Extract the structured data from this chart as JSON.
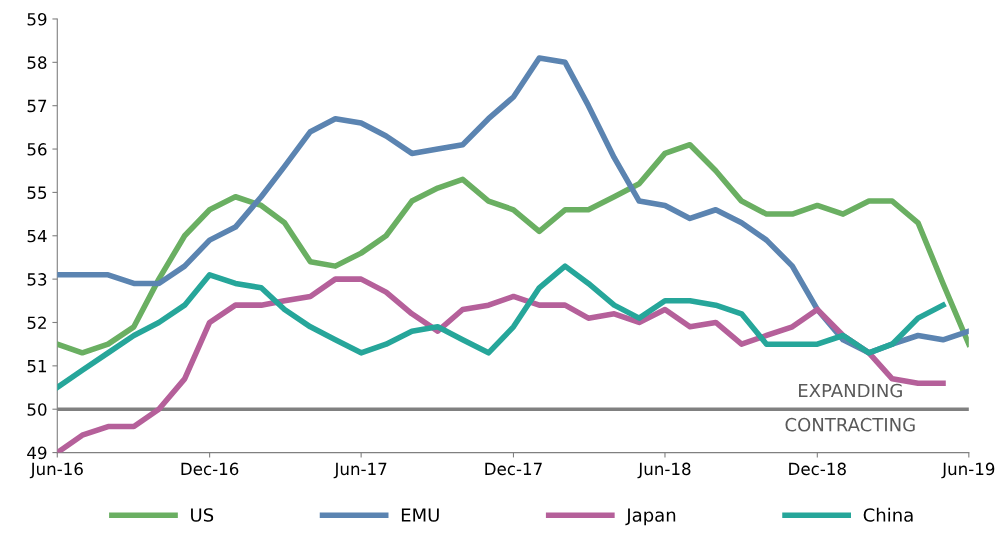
{
  "chart_data": {
    "type": "line",
    "x": [
      "2016-06",
      "2016-07",
      "2016-08",
      "2016-09",
      "2016-10",
      "2016-11",
      "2016-12",
      "2017-01",
      "2017-02",
      "2017-03",
      "2017-04",
      "2017-05",
      "2017-06",
      "2017-07",
      "2017-08",
      "2017-09",
      "2017-10",
      "2017-11",
      "2017-12",
      "2018-01",
      "2018-02",
      "2018-03",
      "2018-04",
      "2018-05",
      "2018-06",
      "2018-07",
      "2018-08",
      "2018-09",
      "2018-10",
      "2018-11",
      "2018-12",
      "2019-01",
      "2019-02",
      "2019-03",
      "2019-04",
      "2019-05",
      "2019-06"
    ],
    "series": [
      {
        "name": "US",
        "color": "#6aaf62",
        "values": [
          51.5,
          51.3,
          51.5,
          51.9,
          53.0,
          54.0,
          54.6,
          54.9,
          54.7,
          54.3,
          53.4,
          53.3,
          53.6,
          54.0,
          54.8,
          55.1,
          55.3,
          54.8,
          54.6,
          54.1,
          54.6,
          54.6,
          54.9,
          55.2,
          55.9,
          56.1,
          55.5,
          54.8,
          54.5,
          54.5,
          54.7,
          54.5,
          54.8,
          54.8,
          54.3,
          52.9,
          51.5
        ]
      },
      {
        "name": "EMU",
        "color": "#5b84b1",
        "values": [
          53.1,
          53.1,
          53.1,
          52.9,
          52.9,
          53.3,
          53.9,
          54.2,
          54.9,
          55.6,
          56.4,
          56.7,
          56.6,
          56.3,
          55.9,
          56.0,
          56.1,
          56.7,
          57.2,
          58.1,
          58.0,
          57.0,
          55.8,
          54.8,
          54.7,
          54.4,
          54.6,
          54.3,
          53.9,
          53.3,
          52.3,
          51.6,
          51.3,
          51.5,
          51.7,
          51.6,
          51.8
        ]
      },
      {
        "name": "Japan",
        "color": "#b5609a",
        "values": [
          49.0,
          49.4,
          49.6,
          49.6,
          50.0,
          50.7,
          52.0,
          52.4,
          52.4,
          52.5,
          52.6,
          53.0,
          53.0,
          52.7,
          52.2,
          51.8,
          52.3,
          52.4,
          52.6,
          52.4,
          52.4,
          52.1,
          52.2,
          52.0,
          52.3,
          51.9,
          52.0,
          51.5,
          51.7,
          51.9,
          52.3,
          51.7,
          51.3,
          50.7,
          50.6,
          50.6,
          null
        ]
      },
      {
        "name": "China",
        "color": "#26a69a",
        "values": [
          50.5,
          50.9,
          51.3,
          51.7,
          52.0,
          52.4,
          53.1,
          52.9,
          52.8,
          52.3,
          51.9,
          51.6,
          51.3,
          51.5,
          51.8,
          51.9,
          51.6,
          51.3,
          51.9,
          52.8,
          53.3,
          52.9,
          52.4,
          52.1,
          52.5,
          52.5,
          52.4,
          52.2,
          51.5,
          51.5,
          51.5,
          51.7,
          51.3,
          51.5,
          52.1,
          52.4,
          null
        ]
      }
    ],
    "xlim": [
      "2016-06",
      "2019-06"
    ],
    "xticks": [
      {
        "value": "2016-06",
        "label": "Jun-16"
      },
      {
        "value": "2016-12",
        "label": "Dec-16"
      },
      {
        "value": "2017-06",
        "label": "Jun-17"
      },
      {
        "value": "2017-12",
        "label": "Dec-17"
      },
      {
        "value": "2018-06",
        "label": "Jun-18"
      },
      {
        "value": "2018-12",
        "label": "Dec-18"
      },
      {
        "value": "2019-06",
        "label": "Jun-19"
      }
    ],
    "ylim": [
      49,
      59
    ],
    "yticks": [
      49,
      50,
      51,
      52,
      53,
      54,
      55,
      56,
      57,
      58,
      59
    ],
    "ref_lines": [
      {
        "axis": "y",
        "value": 50,
        "color": "#808080"
      }
    ],
    "annotations": [
      "EXPANDING",
      "CONTRACTING"
    ],
    "legend": "bottom",
    "grid": false,
    "marker": "none",
    "line_style": "solid"
  }
}
